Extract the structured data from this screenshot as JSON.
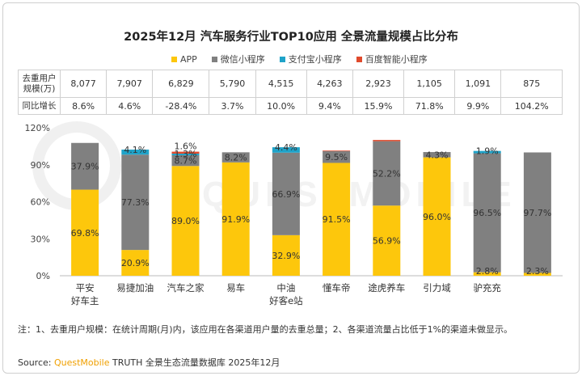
{
  "title": "2025年12月 汽车服务行业TOP10应用 全景流量规模占比分布",
  "legend": [
    {
      "label": "APP",
      "color": "#FDC70C"
    },
    {
      "label": "微信小程序",
      "color": "#808080"
    },
    {
      "label": "支付宝小程序",
      "color": "#1FA3C9"
    },
    {
      "label": "百度智能小程序",
      "color": "#E04A2C"
    }
  ],
  "table": {
    "row1_header": "去重用户规模(万)",
    "row2_header": "同比增长",
    "users": [
      "8,077",
      "7,907",
      "6,829",
      "5,790",
      "4,515",
      "4,263",
      "2,923",
      "1,105",
      "1,091",
      "875"
    ],
    "growth": [
      "8.6%",
      "4.6%",
      "-28.4%",
      "3.7%",
      "10.0%",
      "9.4%",
      "15.9%",
      "71.8%",
      "9.9%",
      "104.2%"
    ]
  },
  "chart_data": {
    "type": "bar",
    "stacked": true,
    "categories": [
      [
        "平安",
        "好车主"
      ],
      [
        "易捷加油"
      ],
      [
        "汽车之家"
      ],
      [
        "易车"
      ],
      [
        "中油",
        "好客e站"
      ],
      [
        "懂车帝"
      ],
      [
        "途虎养车"
      ],
      [
        "引力域"
      ],
      [
        "驴充充"
      ],
      [
        ""
      ]
    ],
    "series": [
      {
        "name": "APP",
        "color": "#FDC70C",
        "values": [
          69.8,
          20.9,
          89.0,
          91.9,
          32.9,
          91.5,
          56.9,
          96.0,
          2.8,
          2.3
        ],
        "labels": [
          "69.8%",
          "20.9%",
          "89.0%",
          "91.9%",
          "32.9%",
          "91.5%",
          "56.9%",
          "96.0%",
          "2.8%",
          "2.3%"
        ]
      },
      {
        "name": "微信小程序",
        "color": "#808080",
        "values": [
          37.9,
          77.3,
          8.7,
          8.2,
          66.9,
          9.5,
          52.2,
          4.3,
          96.5,
          97.7
        ],
        "labels": [
          "37.9%",
          "77.3%",
          "8.7%",
          "8.2%",
          "66.9%",
          "9.5%",
          "52.2%",
          "4.3%",
          "96.5%",
          "97.7%"
        ]
      },
      {
        "name": "支付宝小程序",
        "color": "#1FA3C9",
        "values": [
          0,
          4.1,
          1.3,
          0,
          4.4,
          0,
          0,
          0,
          1.9,
          0
        ],
        "labels": [
          "",
          "4.1%",
          "1.3%",
          "",
          "4.4%",
          "",
          "",
          "",
          "1.9%",
          ""
        ]
      },
      {
        "name": "百度智能小程序",
        "color": "#E04A2C",
        "values": [
          0,
          0,
          1.6,
          0,
          0,
          0.5,
          1.0,
          0,
          0,
          0
        ],
        "labels": [
          "",
          "",
          "1.6%",
          "",
          "",
          "",
          "",
          "",
          "",
          ""
        ]
      }
    ],
    "yticks": [
      "0%",
      "30%",
      "60%",
      "90%",
      "120%"
    ],
    "ylim": [
      0,
      120
    ],
    "grid": false
  },
  "note": "注：1、去重用户规模：在统计周期(月)内，该应用在各渠道用户量的去重总量；2、各渠道流量占比低于1%的渠道未做显示。",
  "source_prefix": "Source: ",
  "source_brand": "QuestMobile",
  "source_rest": " TRUTH 全景生态流量数据库 2025年12月",
  "watermark": "QUESTMOBILE"
}
